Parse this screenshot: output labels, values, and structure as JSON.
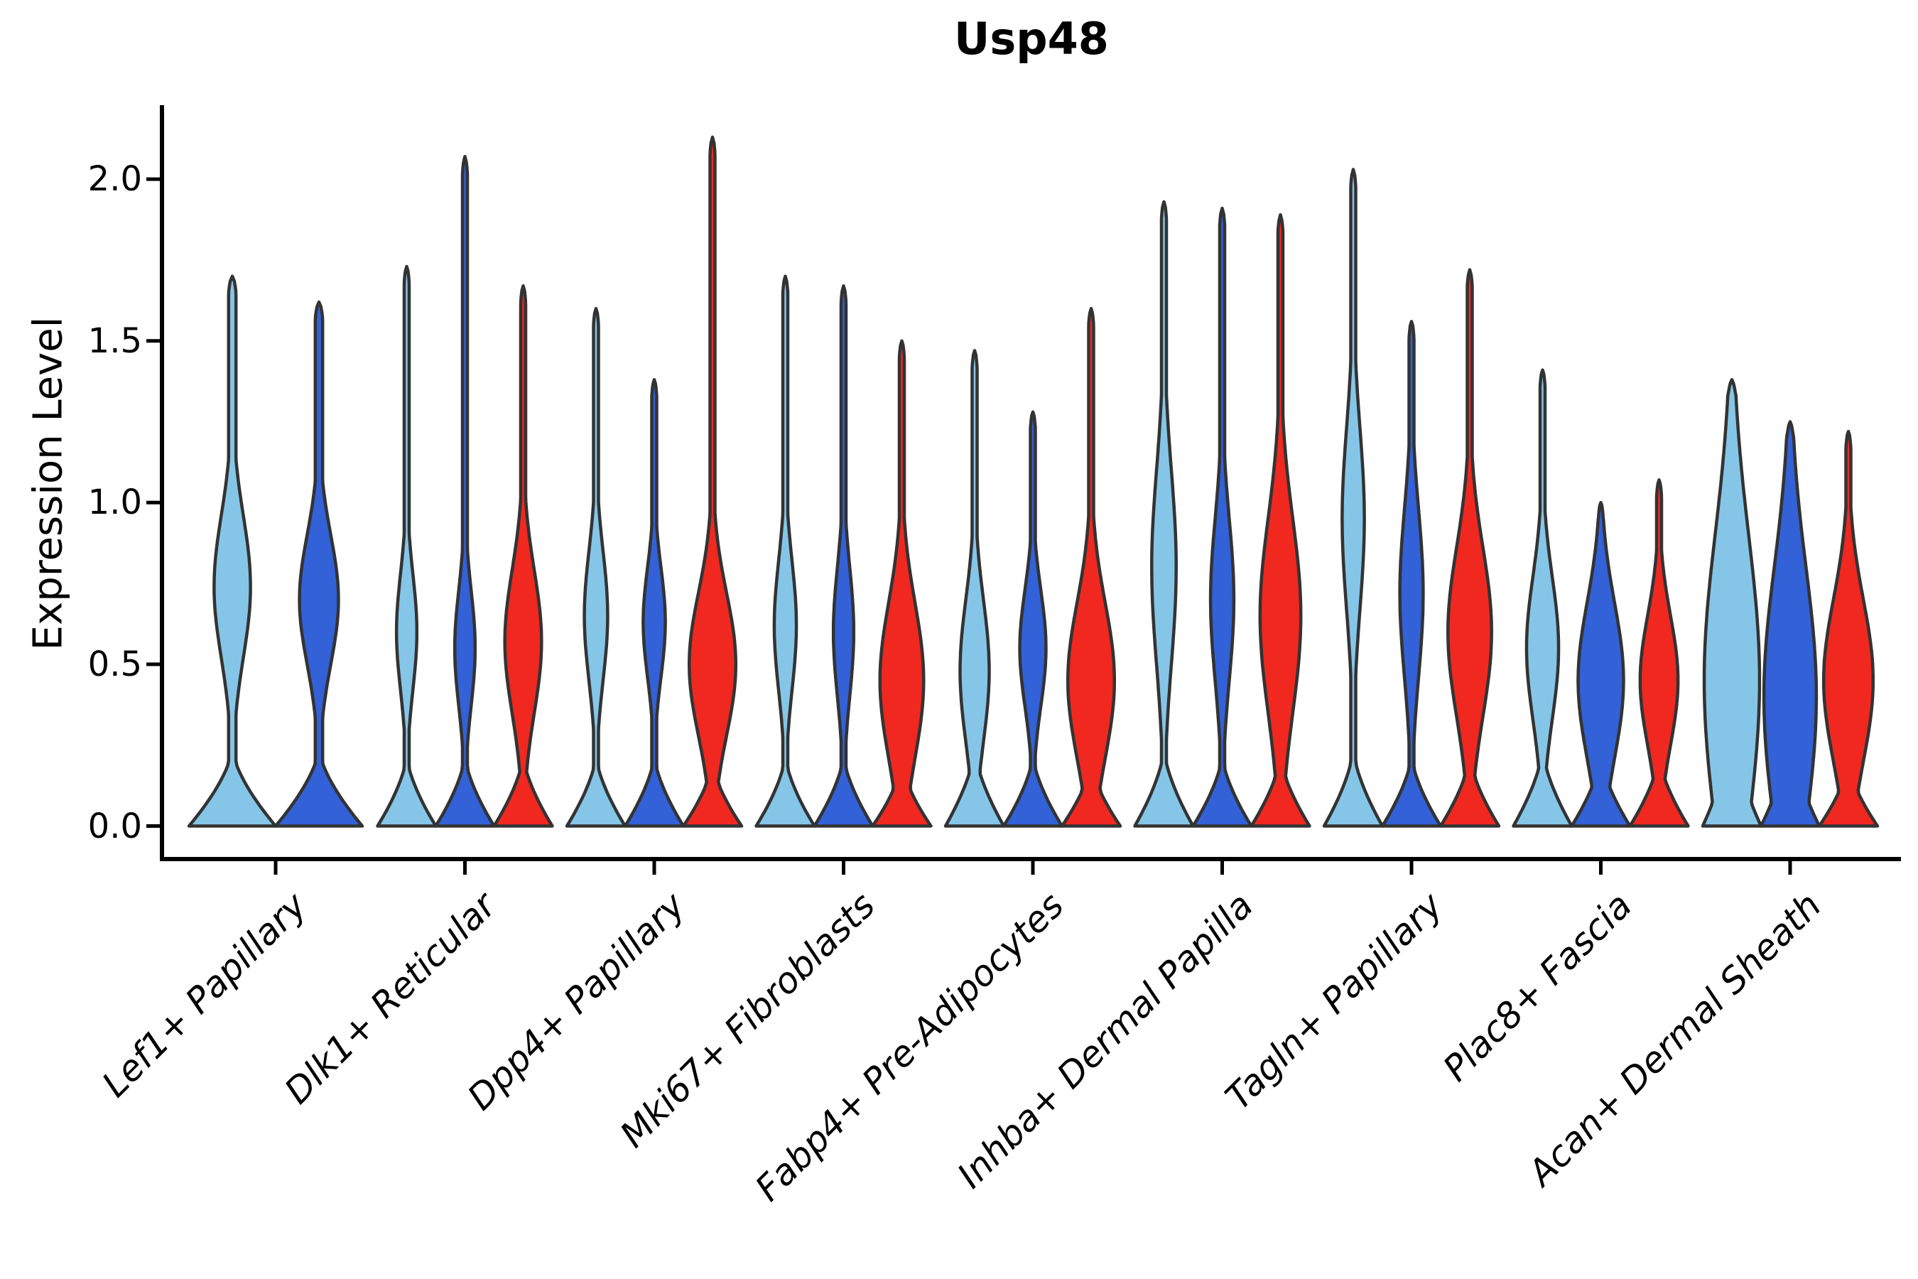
{
  "chart_data": {
    "type": "violin",
    "title": "Usp48",
    "ylabel": "Expression Level",
    "xlabel": "",
    "yticks": [
      0.0,
      0.5,
      1.0,
      1.5,
      2.0
    ],
    "ytick_labels": [
      "0.0",
      "0.5",
      "1.0",
      "1.5",
      "2.0"
    ],
    "ylim": [
      -0.1,
      2.23
    ],
    "grid": false,
    "legend": "none",
    "outline_color": "#333333",
    "categories": [
      "Lef1+ Papillary",
      "Dlk1+ Reticular",
      "Dpp4+ Papillary",
      "Mki67+ Fibroblasts",
      "Fabp4+ Pre-Adipocytes",
      "Inhba+ Dermal Papilla",
      "Tagln+ Papillary",
      "Plac8+ Fascia",
      "Acan+ Dermal Sheath"
    ],
    "series": [
      {
        "name": "split-light-blue",
        "color": "#85C6E8",
        "violins": [
          {
            "max": 1.7,
            "bulge_center": 0.74,
            "bulge_amp": 0.42,
            "bulge_sigma": 0.22,
            "base_top": 0.24
          },
          {
            "max": 1.73,
            "bulge_center": 0.6,
            "bulge_amp": 0.35,
            "bulge_sigma": 0.18,
            "base_top": 0.22
          },
          {
            "max": 1.6,
            "bulge_center": 0.65,
            "bulge_amp": 0.4,
            "bulge_sigma": 0.2,
            "base_top": 0.22
          },
          {
            "max": 1.7,
            "bulge_center": 0.62,
            "bulge_amp": 0.38,
            "bulge_sigma": 0.2,
            "base_top": 0.22
          },
          {
            "max": 1.47,
            "bulge_center": 0.48,
            "bulge_amp": 0.5,
            "bulge_sigma": 0.22,
            "base_top": 0.24
          },
          {
            "max": 1.93,
            "bulge_center": 0.8,
            "bulge_amp": 0.42,
            "bulge_sigma": 0.3,
            "base_top": 0.24
          },
          {
            "max": 2.03,
            "bulge_center": 0.95,
            "bulge_amp": 0.38,
            "bulge_sigma": 0.28,
            "base_top": 0.24
          },
          {
            "max": 1.41,
            "bulge_center": 0.55,
            "bulge_amp": 0.55,
            "bulge_sigma": 0.22,
            "base_top": 0.24
          },
          {
            "max": 1.38,
            "bulge_center": 0.45,
            "bulge_amp": 0.95,
            "bulge_sigma": 0.45,
            "base_top": 0.3
          }
        ]
      },
      {
        "name": "split-dark-blue",
        "color": "#3261D8",
        "violins": [
          {
            "max": 1.62,
            "bulge_center": 0.7,
            "bulge_amp": 0.45,
            "bulge_sigma": 0.2,
            "base_top": 0.24
          },
          {
            "max": 2.07,
            "bulge_center": 0.55,
            "bulge_amp": 0.35,
            "bulge_sigma": 0.18,
            "base_top": 0.22
          },
          {
            "max": 1.38,
            "bulge_center": 0.63,
            "bulge_amp": 0.38,
            "bulge_sigma": 0.17,
            "base_top": 0.22
          },
          {
            "max": 1.67,
            "bulge_center": 0.6,
            "bulge_amp": 0.35,
            "bulge_sigma": 0.2,
            "base_top": 0.22
          },
          {
            "max": 1.28,
            "bulge_center": 0.55,
            "bulge_amp": 0.45,
            "bulge_sigma": 0.18,
            "base_top": 0.22
          },
          {
            "max": 1.91,
            "bulge_center": 0.7,
            "bulge_amp": 0.4,
            "bulge_sigma": 0.25,
            "base_top": 0.22
          },
          {
            "max": 1.56,
            "bulge_center": 0.72,
            "bulge_amp": 0.4,
            "bulge_sigma": 0.26,
            "base_top": 0.22
          },
          {
            "max": 1.0,
            "bulge_center": 0.45,
            "bulge_amp": 0.78,
            "bulge_sigma": 0.24,
            "base_top": 0.22
          },
          {
            "max": 1.25,
            "bulge_center": 0.4,
            "bulge_amp": 0.9,
            "bulge_sigma": 0.4,
            "base_top": 0.28
          }
        ]
      },
      {
        "name": "split-red",
        "color": "#F02820",
        "violins": [
          null,
          {
            "max": 1.67,
            "bulge_center": 0.57,
            "bulge_amp": 0.63,
            "bulge_sigma": 0.22,
            "base_top": 0.22
          },
          {
            "max": 2.13,
            "bulge_center": 0.5,
            "bulge_amp": 0.8,
            "bulge_sigma": 0.22,
            "base_top": 0.2
          },
          {
            "max": 1.5,
            "bulge_center": 0.45,
            "bulge_amp": 0.75,
            "bulge_sigma": 0.24,
            "base_top": 0.2
          },
          {
            "max": 1.6,
            "bulge_center": 0.45,
            "bulge_amp": 0.8,
            "bulge_sigma": 0.24,
            "base_top": 0.2
          },
          {
            "max": 1.89,
            "bulge_center": 0.65,
            "bulge_amp": 0.7,
            "bulge_sigma": 0.3,
            "base_top": 0.22
          },
          {
            "max": 1.72,
            "bulge_center": 0.6,
            "bulge_amp": 0.75,
            "bulge_sigma": 0.26,
            "base_top": 0.22
          },
          {
            "max": 1.07,
            "bulge_center": 0.45,
            "bulge_amp": 0.65,
            "bulge_sigma": 0.2,
            "base_top": 0.22
          },
          {
            "max": 1.22,
            "bulge_center": 0.45,
            "bulge_amp": 0.85,
            "bulge_sigma": 0.25,
            "base_top": 0.2
          }
        ]
      }
    ]
  }
}
